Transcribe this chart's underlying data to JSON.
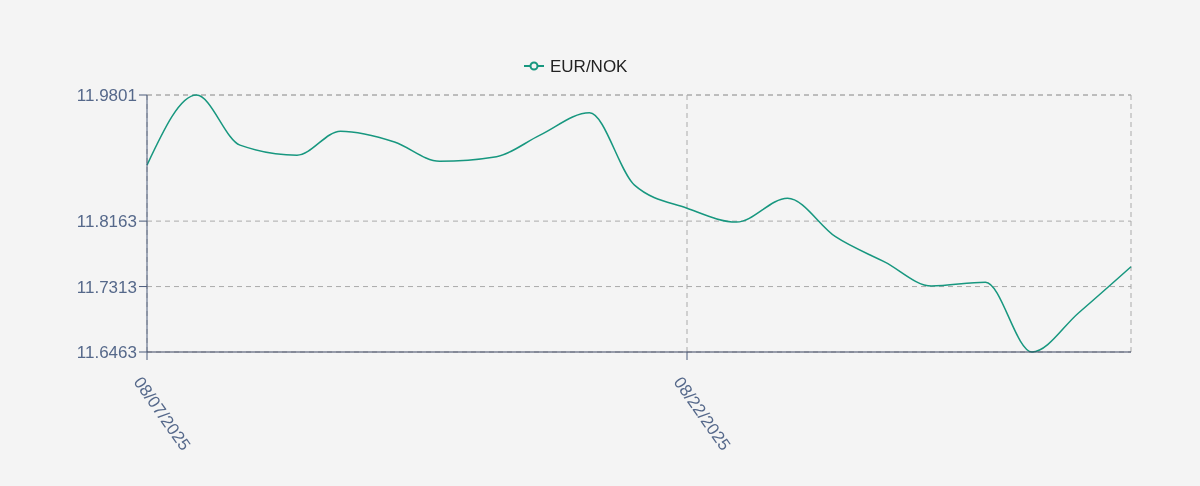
{
  "chart_data": {
    "type": "line",
    "x": [
      "2025-08-07",
      "2025-08-08T09:00",
      "2025-08-09T14:00",
      "2025-08-11T04:00",
      "2025-08-12T09:00",
      "2025-08-13T21:00",
      "2025-08-15T03:00",
      "2025-08-16T17:00",
      "2025-08-17T22:00",
      "2025-08-19T07:00",
      "2025-08-20T13:00",
      "2025-08-22",
      "2025-08-23T09:00",
      "2025-08-24T19:00",
      "2025-08-26T03:00",
      "2025-08-27T12:00",
      "2025-08-28T19:00",
      "2025-08-30T07:00",
      "2025-08-31T14:00",
      "2025-09-01T21:00",
      "2025-09-03T08:00"
    ],
    "series": [
      {
        "name": "EUR/NOK",
        "color": "#17977f",
        "values": [
          11.889,
          11.98,
          11.915,
          11.902,
          11.933,
          11.919,
          11.894,
          11.9,
          11.928,
          11.957,
          11.863,
          11.833,
          11.815,
          11.846,
          11.796,
          11.763,
          11.732,
          11.737,
          11.6463,
          11.697,
          11.757
        ]
      }
    ],
    "xlim": [
      "2025-08-07",
      "2025-09-03T08:00"
    ],
    "xticks": [
      {
        "value": "2025-08-07",
        "label": "08/07/2025"
      },
      {
        "value": "2025-08-22",
        "label": "08/22/2025"
      }
    ],
    "ylim": [
      11.6463,
      11.9801
    ],
    "yticks": [
      11.6463,
      11.7313,
      11.8163,
      11.9801
    ],
    "grid": true,
    "legend": "top",
    "marker": "none",
    "line_style": "solid"
  }
}
